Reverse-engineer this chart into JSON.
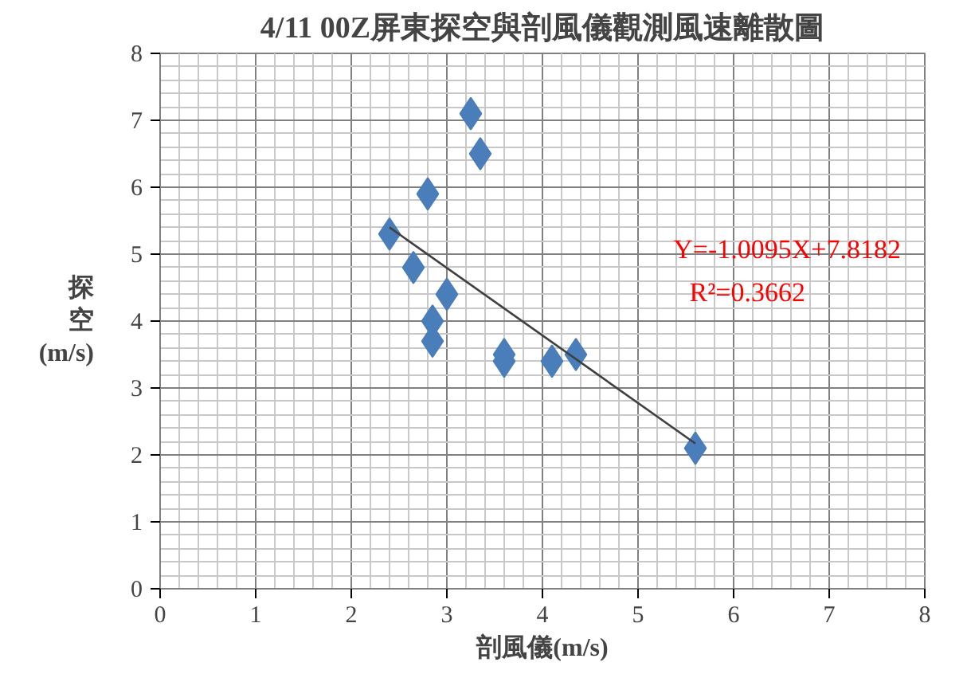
{
  "chart_data": {
    "type": "scatter",
    "title": "4/11 00Z屏東探空與剖風儀觀測風速離散圖",
    "xlabel": "剖風儀(m/s)",
    "ylabel": "探空(m/s)",
    "series": [
      {
        "color": "#4a7ebb",
        "marker": "diamond",
        "x": [
          2.4,
          2.65,
          2.8,
          3.25,
          3.35,
          3.0,
          2.85,
          2.85,
          3.6,
          3.6,
          4.1,
          4.35,
          5.6
        ],
        "values": [
          5.3,
          4.8,
          5.9,
          7.1,
          6.5,
          4.4,
          4.0,
          3.7,
          3.5,
          3.4,
          3.4,
          3.5,
          2.1
        ]
      },
      {
        "type": "line",
        "color": "#404040",
        "marker": "none",
        "x": [
          2.4,
          5.6
        ],
        "values": [
          5.4,
          2.17
        ]
      }
    ],
    "annotations": [
      "Y=-1.0095X+7.8182",
      "R²=0.3662"
    ],
    "xlim": [
      0,
      8
    ],
    "ylim": [
      0,
      8
    ],
    "xticks": [
      0,
      1,
      2,
      3,
      4,
      5,
      6,
      7,
      8
    ],
    "yticks": [
      0,
      1,
      2,
      3,
      4,
      5,
      6,
      7,
      8
    ],
    "grid": true
  }
}
